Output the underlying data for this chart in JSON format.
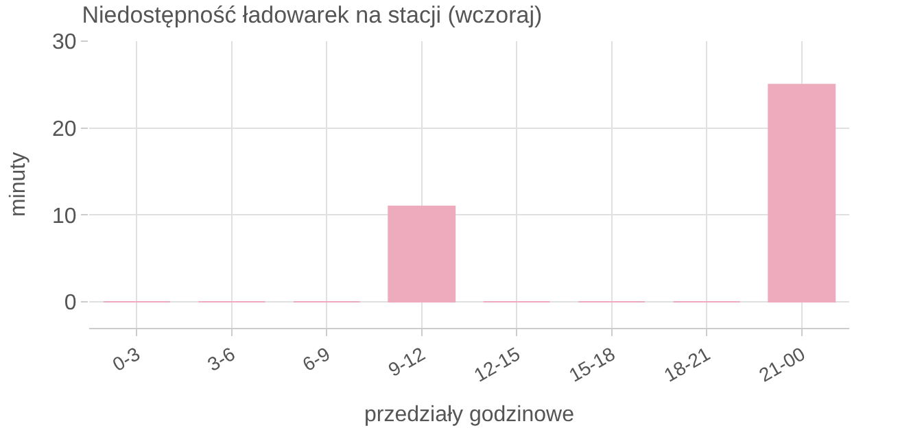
{
  "chart_data": {
    "type": "bar",
    "title": "Niedostępność ładowarek na stacji (wczoraj)",
    "xlabel": "przedziały godzinowe",
    "ylabel": "minuty",
    "categories": [
      "0-3",
      "3-6",
      "6-9",
      "9-12",
      "12-15",
      "15-18",
      "18-21",
      "21-00"
    ],
    "values": [
      0,
      0,
      0,
      11,
      0,
      0,
      0,
      25
    ],
    "color": "#eeabbd",
    "ylim": [
      -3,
      30
    ],
    "yticks": [
      0,
      10,
      20,
      30
    ],
    "grid": true
  }
}
